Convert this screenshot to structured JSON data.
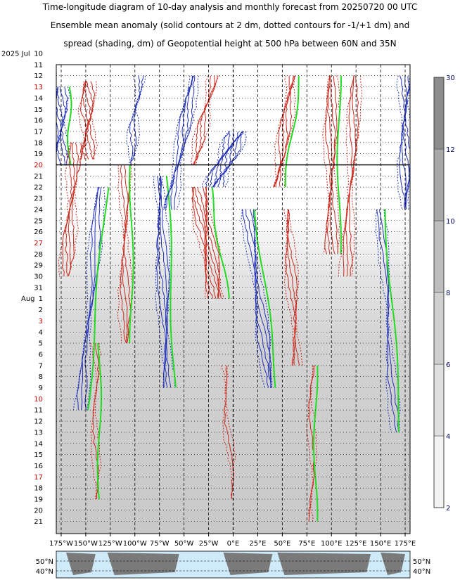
{
  "title": {
    "line1": "Time-longitude diagram of 10-day analysis and monthly forecast from 20250720 00 UTC",
    "line2": "Ensemble mean anomaly (solid contours at 2 dm, dotted contours for -1/+1 dm) and",
    "line3": "spread (shading, dm) of Geopotential height at 500 hPa between 60N and 35N"
  },
  "colors": {
    "positive": "#cc2a1e",
    "negative": "#2233bb",
    "zero": "#22dd22",
    "forecast_line": "#000000",
    "sunday": "#cc0000",
    "colorbar_text": "#000066",
    "map_ocean": "#cfeaf8",
    "map_land": "#7a7a7a"
  },
  "chart_data": {
    "type": "heatmap",
    "year_label": "2025",
    "first_month_label": "Jul",
    "second_month_label": "Aug",
    "y_rows": [
      {
        "date": "2025-07-10",
        "label": "10",
        "sunday": false
      },
      {
        "date": "2025-07-11",
        "label": "11",
        "sunday": false
      },
      {
        "date": "2025-07-12",
        "label": "12",
        "sunday": false
      },
      {
        "date": "2025-07-13",
        "label": "13",
        "sunday": true
      },
      {
        "date": "2025-07-14",
        "label": "14",
        "sunday": false
      },
      {
        "date": "2025-07-15",
        "label": "15",
        "sunday": false
      },
      {
        "date": "2025-07-16",
        "label": "16",
        "sunday": false
      },
      {
        "date": "2025-07-17",
        "label": "17",
        "sunday": false
      },
      {
        "date": "2025-07-18",
        "label": "18",
        "sunday": false
      },
      {
        "date": "2025-07-19",
        "label": "19",
        "sunday": false
      },
      {
        "date": "2025-07-20",
        "label": "20",
        "sunday": true
      },
      {
        "date": "2025-07-21",
        "label": "21",
        "sunday": false
      },
      {
        "date": "2025-07-22",
        "label": "22",
        "sunday": false
      },
      {
        "date": "2025-07-23",
        "label": "23",
        "sunday": false
      },
      {
        "date": "2025-07-24",
        "label": "24",
        "sunday": false
      },
      {
        "date": "2025-07-25",
        "label": "25",
        "sunday": false
      },
      {
        "date": "2025-07-26",
        "label": "26",
        "sunday": false
      },
      {
        "date": "2025-07-27",
        "label": "27",
        "sunday": true
      },
      {
        "date": "2025-07-28",
        "label": "28",
        "sunday": false
      },
      {
        "date": "2025-07-29",
        "label": "29",
        "sunday": false
      },
      {
        "date": "2025-07-30",
        "label": "30",
        "sunday": false
      },
      {
        "date": "2025-07-31",
        "label": "31",
        "sunday": false
      },
      {
        "date": "2025-08-01",
        "label": "1",
        "sunday": false
      },
      {
        "date": "2025-08-02",
        "label": "2",
        "sunday": false
      },
      {
        "date": "2025-08-03",
        "label": "3",
        "sunday": true
      },
      {
        "date": "2025-08-04",
        "label": "4",
        "sunday": false
      },
      {
        "date": "2025-08-05",
        "label": "5",
        "sunday": false
      },
      {
        "date": "2025-08-06",
        "label": "6",
        "sunday": false
      },
      {
        "date": "2025-08-07",
        "label": "7",
        "sunday": false
      },
      {
        "date": "2025-08-08",
        "label": "8",
        "sunday": false
      },
      {
        "date": "2025-08-09",
        "label": "9",
        "sunday": false
      },
      {
        "date": "2025-08-10",
        "label": "10",
        "sunday": true
      },
      {
        "date": "2025-08-11",
        "label": "11",
        "sunday": false
      },
      {
        "date": "2025-08-12",
        "label": "12",
        "sunday": false
      },
      {
        "date": "2025-08-13",
        "label": "13",
        "sunday": false
      },
      {
        "date": "2025-08-14",
        "label": "14",
        "sunday": false
      },
      {
        "date": "2025-08-15",
        "label": "15",
        "sunday": false
      },
      {
        "date": "2025-08-16",
        "label": "16",
        "sunday": false
      },
      {
        "date": "2025-08-17",
        "label": "17",
        "sunday": true
      },
      {
        "date": "2025-08-18",
        "label": "18",
        "sunday": false
      },
      {
        "date": "2025-08-19",
        "label": "19",
        "sunday": false
      },
      {
        "date": "2025-08-20",
        "label": "20",
        "sunday": false
      },
      {
        "date": "2025-08-21",
        "label": "21",
        "sunday": false
      }
    ],
    "forecast_start_date": "2025-07-20",
    "x_ticks": [
      {
        "lon": -175,
        "label": "175°W"
      },
      {
        "lon": -150,
        "label": "150°W"
      },
      {
        "lon": -125,
        "label": "125°W"
      },
      {
        "lon": -100,
        "label": "100°W"
      },
      {
        "lon": -75,
        "label": "75°W"
      },
      {
        "lon": -50,
        "label": "50°W"
      },
      {
        "lon": -25,
        "label": "25°W"
      },
      {
        "lon": 0,
        "label": "0°E"
      },
      {
        "lon": 25,
        "label": "25°E"
      },
      {
        "lon": 50,
        "label": "50°E"
      },
      {
        "lon": 75,
        "label": "75°E"
      },
      {
        "lon": 100,
        "label": "100°E"
      },
      {
        "lon": 125,
        "label": "125°E"
      },
      {
        "lon": 150,
        "label": "150°E"
      },
      {
        "lon": 175,
        "label": "175°E"
      }
    ],
    "xlim": [
      -180,
      180
    ],
    "colorbar": {
      "ticks": [
        2,
        4,
        6,
        8,
        10,
        12,
        30
      ],
      "label_unit": "dm"
    },
    "map_lat_labels": [
      "50°N",
      "40°N"
    ],
    "anomaly_contours": {
      "solid_interval_dm": 2,
      "dotted_levels_dm": [
        -1,
        1
      ]
    },
    "anomaly_bands": [
      {
        "lon0": -177,
        "d0": 3.0,
        "d1": 10.0,
        "drift": 0,
        "sign": "neg",
        "amp": 8
      },
      {
        "lon0": -148,
        "d0": 2.5,
        "d1": 9.5,
        "drift": 0,
        "sign": "pos",
        "amp": 7
      },
      {
        "lon0": -135,
        "d0": 12,
        "d1": 32,
        "drift": -20,
        "sign": "neg",
        "amp": 5
      },
      {
        "lon0": -160,
        "d0": 8,
        "d1": 20,
        "drift": -10,
        "sign": "pos",
        "amp": 6
      },
      {
        "lon0": -110,
        "d0": 10,
        "d1": 26,
        "drift": 0,
        "sign": "pos",
        "amp": 5
      },
      {
        "lon0": -95,
        "d0": 2,
        "d1": 10,
        "drift": -10,
        "sign": "neg",
        "amp": 4
      },
      {
        "lon0": -75,
        "d0": 11,
        "d1": 30,
        "drift": 8,
        "sign": "neg",
        "amp": 6
      },
      {
        "lon0": -40,
        "d0": 2,
        "d1": 14,
        "drift": -25,
        "sign": "neg",
        "amp": 6
      },
      {
        "lon0": -35,
        "d0": 12,
        "d1": 22,
        "drift": 18,
        "sign": "pos",
        "amp": 9
      },
      {
        "lon0": 5,
        "d0": 7,
        "d1": 12,
        "drift": -25,
        "sign": "neg",
        "amp": 10
      },
      {
        "lon0": 15,
        "d0": 14,
        "d1": 30,
        "drift": 22,
        "sign": "neg",
        "amp": 6
      },
      {
        "lon0": -20,
        "d0": 2,
        "d1": 10,
        "drift": -20,
        "sign": "pos",
        "amp": 5
      },
      {
        "lon0": 60,
        "d0": 2,
        "d1": 12,
        "drift": -15,
        "sign": "pos",
        "amp": 6
      },
      {
        "lon0": 55,
        "d0": 14,
        "d1": 28,
        "drift": 10,
        "sign": "pos",
        "amp": 5
      },
      {
        "lon0": 100,
        "d0": 2,
        "d1": 18,
        "drift": 0,
        "sign": "pos",
        "amp": 6
      },
      {
        "lon0": 125,
        "d0": 2,
        "d1": 20,
        "drift": -10,
        "sign": "pos",
        "amp": 5
      },
      {
        "lon0": 150,
        "d0": 14,
        "d1": 34,
        "drift": 15,
        "sign": "neg",
        "amp": 4
      },
      {
        "lon0": 175,
        "d0": 2,
        "d1": 14,
        "drift": 0,
        "sign": "neg",
        "amp": 6
      },
      {
        "lon0": -140,
        "d0": 26,
        "d1": 40,
        "drift": 0,
        "sign": "pos",
        "amp": 3
      },
      {
        "lon0": -10,
        "d0": 28,
        "d1": 40,
        "drift": 10,
        "sign": "pos",
        "amp": 3
      },
      {
        "lon0": 80,
        "d0": 28,
        "d1": 42,
        "drift": 0,
        "sign": "pos",
        "amp": 3
      }
    ]
  }
}
